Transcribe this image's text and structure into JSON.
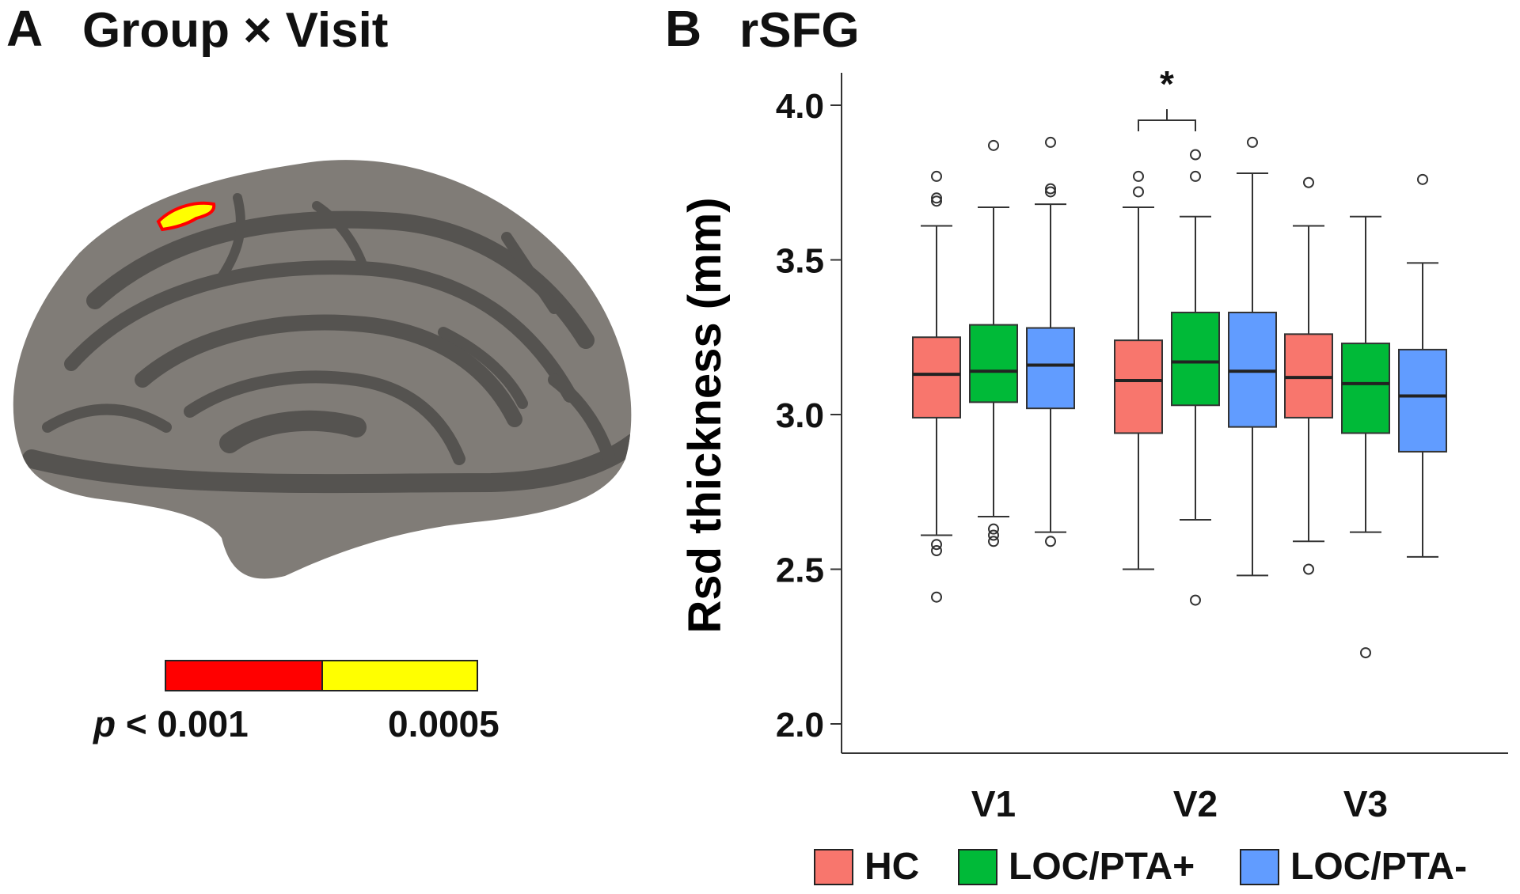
{
  "panel_a": {
    "letter": "A",
    "title": "Group × Visit",
    "colorbar": {
      "low_color": "#ff0000",
      "high_color": "#ffff00",
      "p_symbol": "p",
      "low_label": "< 0.001",
      "high_label": "0.0005"
    }
  },
  "panel_b": {
    "letter": "B",
    "title": "rSFG"
  },
  "chart_data": {
    "type": "box",
    "title": "rSFG",
    "xlabel": "",
    "ylabel": "Rsd thickness (mm)",
    "ylim": [
      1.9,
      4.1
    ],
    "yticks": [
      "2.0",
      "2.5",
      "3.0",
      "3.5",
      "4.0"
    ],
    "grid": false,
    "legend_position": "bottom",
    "categories": [
      "V1",
      "V2",
      "V3"
    ],
    "significance": [
      {
        "category": "V2",
        "between": [
          "HC",
          "LOC/PTA+"
        ],
        "label": "*"
      }
    ],
    "series": [
      {
        "name": "HC",
        "color": "#f8766d",
        "boxes": [
          {
            "whisker_low": 2.61,
            "q1": 2.99,
            "median": 3.13,
            "q3": 3.25,
            "whisker_high": 3.61,
            "outliers": [
              3.77,
              3.7,
              3.69,
              2.58,
              2.56,
              2.41
            ]
          },
          {
            "whisker_low": 2.5,
            "q1": 2.94,
            "median": 3.11,
            "q3": 3.24,
            "whisker_high": 3.67,
            "outliers": [
              3.77,
              3.72
            ]
          },
          {
            "whisker_low": 2.59,
            "q1": 2.99,
            "median": 3.12,
            "q3": 3.26,
            "whisker_high": 3.61,
            "outliers": [
              3.75,
              2.5
            ]
          }
        ]
      },
      {
        "name": "LOC/PTA+",
        "color": "#00ba38",
        "boxes": [
          {
            "whisker_low": 2.67,
            "q1": 3.04,
            "median": 3.14,
            "q3": 3.29,
            "whisker_high": 3.67,
            "outliers": [
              3.87,
              2.63,
              2.61,
              2.59
            ]
          },
          {
            "whisker_low": 2.66,
            "q1": 3.03,
            "median": 3.17,
            "q3": 3.33,
            "whisker_high": 3.64,
            "outliers": [
              3.84,
              3.77,
              2.4
            ]
          },
          {
            "whisker_low": 2.62,
            "q1": 2.94,
            "median": 3.1,
            "q3": 3.23,
            "whisker_high": 3.64,
            "outliers": [
              2.23
            ]
          }
        ]
      },
      {
        "name": "LOC/PTA-",
        "color": "#619cff",
        "boxes": [
          {
            "whisker_low": 2.62,
            "q1": 3.02,
            "median": 3.16,
            "q3": 3.28,
            "whisker_high": 3.68,
            "outliers": [
              3.88,
              3.73,
              3.72,
              2.59
            ]
          },
          {
            "whisker_low": 2.48,
            "q1": 2.96,
            "median": 3.14,
            "q3": 3.33,
            "whisker_high": 3.78,
            "outliers": [
              3.88
            ]
          },
          {
            "whisker_low": 2.54,
            "q1": 2.88,
            "median": 3.06,
            "q3": 3.21,
            "whisker_high": 3.49,
            "outliers": [
              3.76
            ]
          }
        ]
      }
    ]
  }
}
